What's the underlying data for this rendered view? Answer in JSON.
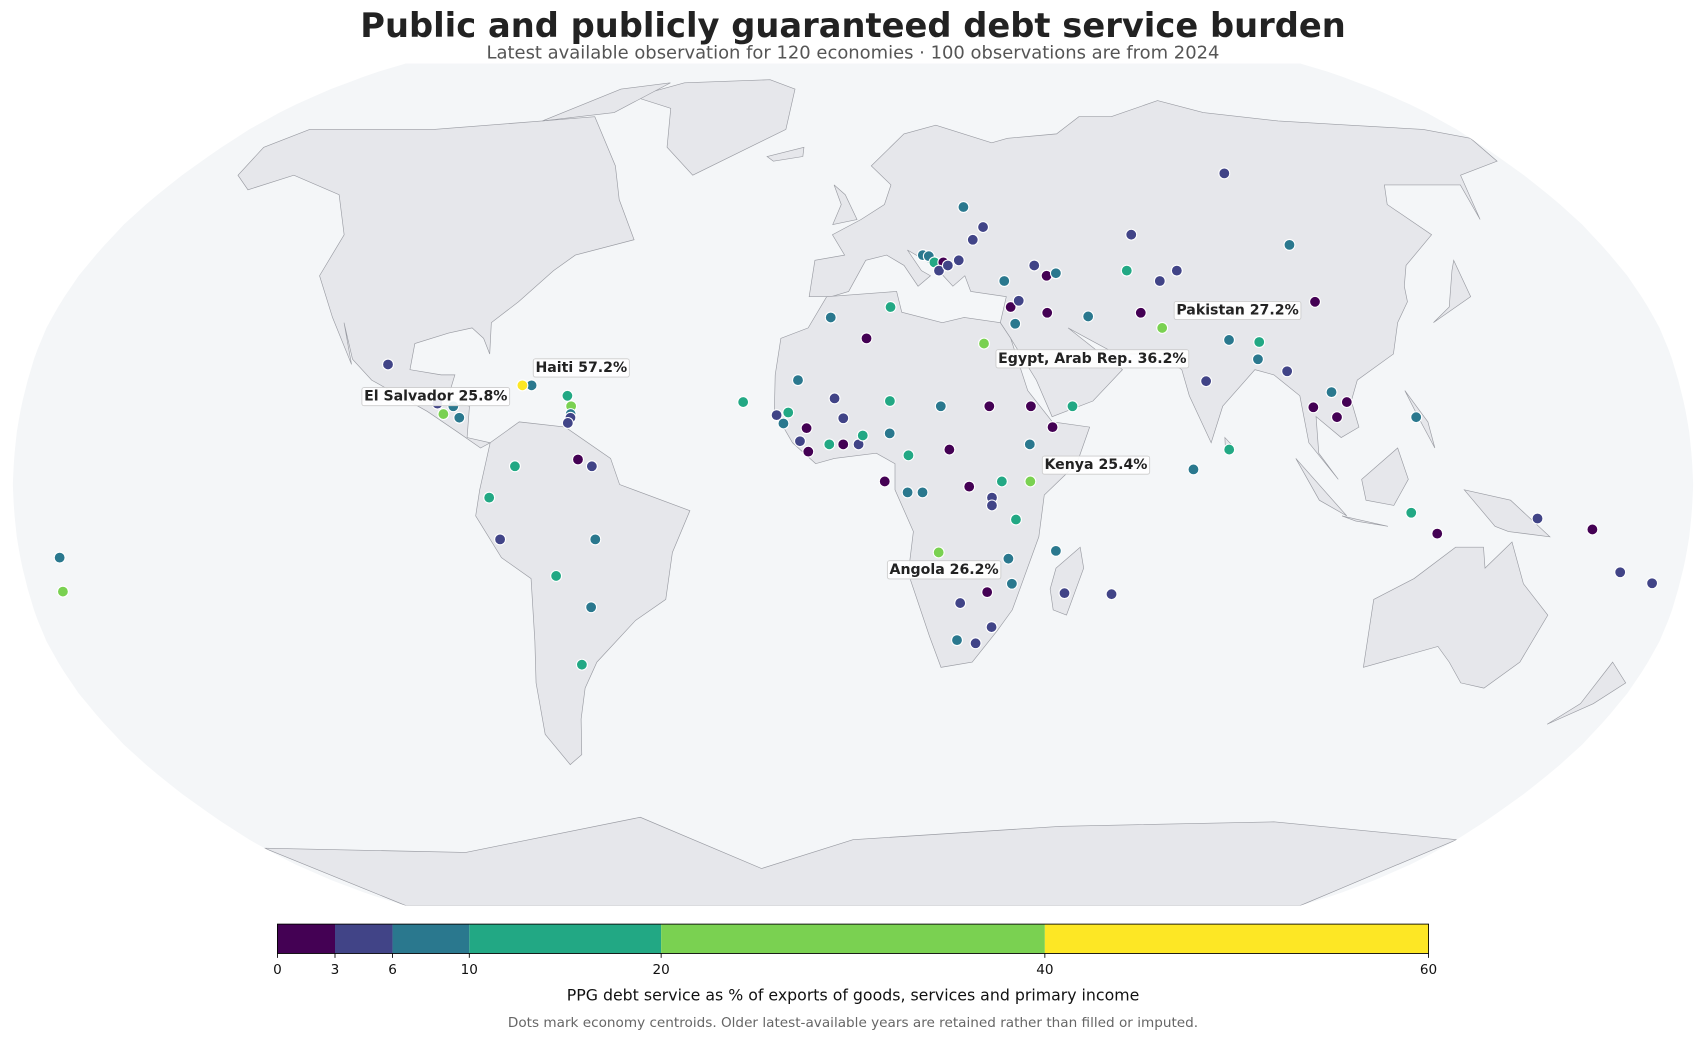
{
  "chart_data": {
    "type": "map",
    "projection": "robinson",
    "title": "Public and publicly guaranteed debt service burden",
    "subtitle": "Latest available observation for 120 economies · 100 observations are from 2024",
    "note": "Dots mark economy centroids. Older latest-available years are retained rather than filled or imputed.",
    "colorbar": {
      "label": "PPG debt service as % of exports of goods, services and primary income",
      "bins": [
        0,
        3,
        6,
        10,
        20,
        40,
        60
      ],
      "colors": [
        "#440154",
        "#414487",
        "#2a788e",
        "#22a884",
        "#7ad151",
        "#fde725"
      ]
    },
    "annotations": [
      {
        "label": "Haiti 57.2%",
        "value": 57.2,
        "lon": -72,
        "lat": 19
      },
      {
        "label": "El Salvador 25.8%",
        "value": 25.8,
        "lon": -88.5,
        "lat": 13.5
      },
      {
        "label": "Egypt, Arab Rep. 36.2%",
        "value": 36.2,
        "lon": 29,
        "lat": 27
      },
      {
        "label": "Pakistan 27.2%",
        "value": 27.2,
        "lon": 69,
        "lat": 30
      },
      {
        "label": "Kenya 25.4%",
        "value": 25.4,
        "lon": 38,
        "lat": 0.6
      },
      {
        "label": "Angola 26.2%",
        "value": 26.2,
        "lon": 18.5,
        "lat": -13
      }
    ],
    "points": [
      {
        "lon": -102,
        "lat": 23,
        "value": 4.5
      },
      {
        "lon": -90,
        "lat": 15.5,
        "value": 4.5
      },
      {
        "lon": -86.5,
        "lat": 15,
        "value": 8
      },
      {
        "lon": -85,
        "lat": 12.8,
        "value": 8
      },
      {
        "lon": -70,
        "lat": 19,
        "value": 8
      },
      {
        "lon": -62,
        "lat": 17,
        "value": 15
      },
      {
        "lon": -61,
        "lat": 15,
        "value": 30
      },
      {
        "lon": -61,
        "lat": 13.5,
        "value": 8
      },
      {
        "lon": -61,
        "lat": 12.8,
        "value": 4.5
      },
      {
        "lon": -61.5,
        "lat": 11.8,
        "value": 4.5
      },
      {
        "lon": -59,
        "lat": 4.8,
        "value": 1.5
      },
      {
        "lon": -56,
        "lat": 3.5,
        "value": 4.5
      },
      {
        "lon": -72.5,
        "lat": 3.5,
        "value": 15
      },
      {
        "lon": -78,
        "lat": -2.5,
        "value": 15
      },
      {
        "lon": -76,
        "lat": -10.5,
        "value": 4.5
      },
      {
        "lon": -55.5,
        "lat": -10.5,
        "value": 8
      },
      {
        "lon": -64.5,
        "lat": -17.5,
        "value": 15
      },
      {
        "lon": -57.5,
        "lat": -23.5,
        "value": 8
      },
      {
        "lon": -61.5,
        "lat": -34.5,
        "value": 15
      },
      {
        "lon": -171.5,
        "lat": -14,
        "value": 8
      },
      {
        "lon": -172.5,
        "lat": -20.5,
        "value": 30
      },
      {
        "lon": -5,
        "lat": 32,
        "value": 8
      },
      {
        "lon": 3,
        "lat": 28,
        "value": 1.5
      },
      {
        "lon": 8.5,
        "lat": 34,
        "value": 15
      },
      {
        "lon": -12,
        "lat": 20,
        "value": 8
      },
      {
        "lon": -4,
        "lat": 16.5,
        "value": 4.5
      },
      {
        "lon": 8,
        "lat": 16,
        "value": 15
      },
      {
        "lon": 19,
        "lat": 15,
        "value": 8
      },
      {
        "lon": 29.5,
        "lat": 15,
        "value": 1.5
      },
      {
        "lon": 38.5,
        "lat": 15,
        "value": 1.5
      },
      {
        "lon": 47.5,
        "lat": 15,
        "value": 15
      },
      {
        "lon": 43,
        "lat": 11,
        "value": 1.5
      },
      {
        "lon": 38,
        "lat": 7.7,
        "value": 8
      },
      {
        "lon": -16.5,
        "lat": 13.3,
        "value": 4.5
      },
      {
        "lon": -15,
        "lat": 11.7,
        "value": 8
      },
      {
        "lon": -14,
        "lat": 13.8,
        "value": 15
      },
      {
        "lon": -11.4,
        "lat": 8.3,
        "value": 4.5
      },
      {
        "lon": -10,
        "lat": 10.8,
        "value": 1.5
      },
      {
        "lon": -9.6,
        "lat": 6.3,
        "value": 1.5
      },
      {
        "lon": -5.1,
        "lat": 7.7,
        "value": 15
      },
      {
        "lon": -2.1,
        "lat": 7.7,
        "value": 1.5
      },
      {
        "lon": 1.2,
        "lat": 7.7,
        "value": 4.5
      },
      {
        "lon": 2.1,
        "lat": 9.4,
        "value": 15
      },
      {
        "lon": -2.1,
        "lat": 12.7,
        "value": 4.5
      },
      {
        "lon": 7.9,
        "lat": 9.8,
        "value": 8
      },
      {
        "lon": 11.9,
        "lat": 5.6,
        "value": 15
      },
      {
        "lon": 20.7,
        "lat": 6.7,
        "value": 1.5
      },
      {
        "lon": 6.8,
        "lat": 0.6,
        "value": 1.5
      },
      {
        "lon": 11.7,
        "lat": -1.5,
        "value": 8
      },
      {
        "lon": 14.9,
        "lat": -1.5,
        "value": 8
      },
      {
        "lon": 24.9,
        "lat": -0.4,
        "value": 1.5
      },
      {
        "lon": 29.8,
        "lat": -2.5,
        "value": 4.5
      },
      {
        "lon": 29.8,
        "lat": -4,
        "value": 4.5
      },
      {
        "lon": 31.9,
        "lat": 0.6,
        "value": 15
      },
      {
        "lon": 35,
        "lat": -6.7,
        "value": 15
      },
      {
        "lon": 33.6,
        "lat": -14.2,
        "value": 8
      },
      {
        "lon": 34.6,
        "lat": -19,
        "value": 8
      },
      {
        "lon": 29.3,
        "lat": -20.6,
        "value": 1.5
      },
      {
        "lon": 23.5,
        "lat": -22.7,
        "value": 4.5
      },
      {
        "lon": 30.7,
        "lat": -27.3,
        "value": 4.5
      },
      {
        "lon": 27.4,
        "lat": -30.4,
        "value": 4.5
      },
      {
        "lon": 23.2,
        "lat": -29.8,
        "value": 8
      },
      {
        "lon": 43.8,
        "lat": -12.7,
        "value": 8
      },
      {
        "lon": 46.2,
        "lat": -20.8,
        "value": 4.5
      },
      {
        "lon": 56.5,
        "lat": -21,
        "value": 4.5
      },
      {
        "lon": -23.8,
        "lat": 15.8,
        "value": 15
      },
      {
        "lon": 28,
        "lat": 53.5,
        "value": 8
      },
      {
        "lon": 29,
        "lat": 47,
        "value": 4.5
      },
      {
        "lon": 32,
        "lat": 49.5,
        "value": 4.5
      },
      {
        "lon": 16.6,
        "lat": 44,
        "value": 8
      },
      {
        "lon": 18,
        "lat": 43.8,
        "value": 8
      },
      {
        "lon": 19.2,
        "lat": 42.6,
        "value": 15
      },
      {
        "lon": 21.3,
        "lat": 42.6,
        "value": 1.5
      },
      {
        "lon": 20.1,
        "lat": 41,
        "value": 4.5
      },
      {
        "lon": 22.3,
        "lat": 42,
        "value": 4.5
      },
      {
        "lon": 25,
        "lat": 43,
        "value": 4.5
      },
      {
        "lon": 35,
        "lat": 39,
        "value": 8
      },
      {
        "lon": 42.6,
        "lat": 42,
        "value": 4.5
      },
      {
        "lon": 45,
        "lat": 40,
        "value": 1.5
      },
      {
        "lon": 47.3,
        "lat": 40.5,
        "value": 8
      },
      {
        "lon": 35.7,
        "lat": 34,
        "value": 1.5
      },
      {
        "lon": 37.7,
        "lat": 35.2,
        "value": 4.5
      },
      {
        "lon": 36.3,
        "lat": 30.8,
        "value": 8
      },
      {
        "lon": 43.8,
        "lat": 32.9,
        "value": 1.5
      },
      {
        "lon": 52.9,
        "lat": 32.2,
        "value": 8
      },
      {
        "lon": 64.9,
        "lat": 32.9,
        "value": 1.5
      },
      {
        "lon": 64,
        "lat": 41,
        "value": 15
      },
      {
        "lon": 67.8,
        "lat": 48,
        "value": 4.5
      },
      {
        "lon": 71,
        "lat": 39,
        "value": 4.5
      },
      {
        "lon": 75.7,
        "lat": 41,
        "value": 4.5
      },
      {
        "lon": 100,
        "lat": 60.4,
        "value": 4.5
      },
      {
        "lon": 105,
        "lat": 46,
        "value": 8
      },
      {
        "lon": 105,
        "lat": 35,
        "value": 1.5
      },
      {
        "lon": 83.4,
        "lat": 27.7,
        "value": 8
      },
      {
        "lon": 90,
        "lat": 27.3,
        "value": 15
      },
      {
        "lon": 89,
        "lat": 24,
        "value": 8
      },
      {
        "lon": 77,
        "lat": 19.8,
        "value": 4.5
      },
      {
        "lon": 95,
        "lat": 21.7,
        "value": 4.5
      },
      {
        "lon": 104,
        "lat": 17.7,
        "value": 8
      },
      {
        "lon": 99.6,
        "lat": 14.8,
        "value": 1.5
      },
      {
        "lon": 104.5,
        "lat": 12.9,
        "value": 1.5
      },
      {
        "lon": 107,
        "lat": 15.8,
        "value": 1.5
      },
      {
        "lon": 121.6,
        "lat": 12.9,
        "value": 8
      },
      {
        "lon": 80.8,
        "lat": 6.7,
        "value": 15
      },
      {
        "lon": 73,
        "lat": 2.9,
        "value": 8
      },
      {
        "lon": 119.8,
        "lat": -5.4,
        "value": 15
      },
      {
        "lon": 125.7,
        "lat": -9.4,
        "value": 1.5
      },
      {
        "lon": 147,
        "lat": -6.5,
        "value": 4.5
      },
      {
        "lon": 159,
        "lat": -8.6,
        "value": 1.5
      },
      {
        "lon": 166.5,
        "lat": -16.8,
        "value": 4.5
      },
      {
        "lon": 174,
        "lat": -18.9,
        "value": 4.5
      }
    ]
  }
}
